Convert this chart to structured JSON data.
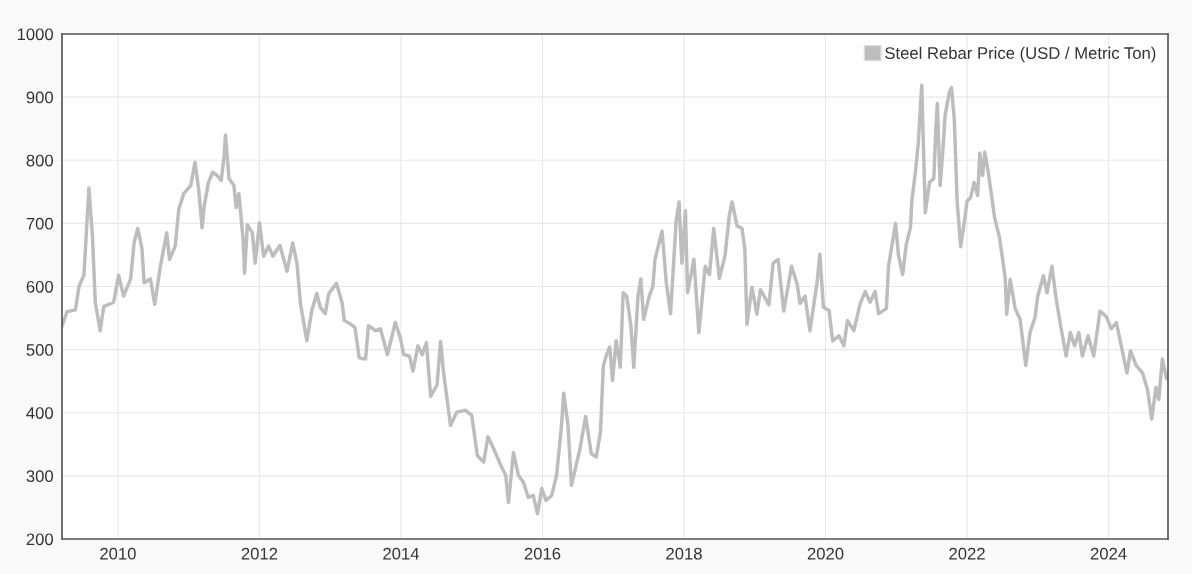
{
  "chart_data": {
    "type": "line",
    "xlim": [
      2009.21,
      2024.84
    ],
    "xticks": [
      2010,
      2012,
      2014,
      2016,
      2018,
      2020,
      2022,
      2024
    ],
    "ylim": [
      200,
      1000
    ],
    "yticks": [
      200,
      300,
      400,
      500,
      600,
      700,
      800,
      900,
      1000
    ],
    "grid": true,
    "legend": "top right",
    "marker": "none",
    "line_style": "solid",
    "series": [
      {
        "name": "Steel Rebar Price (USD / Metric Ton)",
        "color": "#bdbdbd",
        "x": [
          2009.21,
          2009.28,
          2009.4,
          2009.45,
          2009.52,
          2009.59,
          2009.64,
          2009.68,
          2009.75,
          2009.8,
          2009.94,
          2010.01,
          2010.08,
          2010.18,
          2010.23,
          2010.28,
          2010.34,
          2010.37,
          2010.46,
          2010.52,
          2010.6,
          2010.69,
          2010.73,
          2010.81,
          2010.86,
          2010.93,
          2011.03,
          2011.09,
          2011.14,
          2011.19,
          2011.22,
          2011.28,
          2011.34,
          2011.4,
          2011.46,
          2011.5,
          2011.52,
          2011.57,
          2011.64,
          2011.67,
          2011.71,
          2011.77,
          2011.79,
          2011.83,
          2011.9,
          2011.94,
          2012.0,
          2012.06,
          2012.13,
          2012.19,
          2012.29,
          2012.39,
          2012.47,
          2012.53,
          2012.58,
          2012.67,
          2012.74,
          2012.81,
          2012.86,
          2012.93,
          2012.98,
          2013.09,
          2013.17,
          2013.2,
          2013.28,
          2013.35,
          2013.41,
          2013.5,
          2013.54,
          2013.64,
          2013.71,
          2013.81,
          2013.92,
          2013.99,
          2014.04,
          2014.12,
          2014.17,
          2014.24,
          2014.3,
          2014.36,
          2014.42,
          2014.51,
          2014.56,
          2014.6,
          2014.7,
          2014.79,
          2014.91,
          2015.0,
          2015.08,
          2015.17,
          2015.23,
          2015.31,
          2015.41,
          2015.48,
          2015.52,
          2015.59,
          2015.66,
          2015.73,
          2015.8,
          2015.87,
          2015.93,
          2015.99,
          2016.05,
          2016.13,
          2016.2,
          2016.27,
          2016.3,
          2016.36,
          2016.41,
          2016.53,
          2016.61,
          2016.69,
          2016.76,
          2016.82,
          2016.86,
          2016.9,
          2016.95,
          2016.99,
          2017.04,
          2017.1,
          2017.14,
          2017.19,
          2017.25,
          2017.29,
          2017.35,
          2017.39,
          2017.43,
          2017.51,
          2017.56,
          2017.59,
          2017.69,
          2017.75,
          2017.81,
          2017.89,
          2017.93,
          2017.97,
          2018.02,
          2018.05,
          2018.14,
          2018.21,
          2018.3,
          2018.36,
          2018.42,
          2018.5,
          2018.58,
          2018.64,
          2018.68,
          2018.75,
          2018.82,
          2018.86,
          2018.89,
          2018.96,
          2019.03,
          2019.08,
          2019.2,
          2019.26,
          2019.33,
          2019.41,
          2019.52,
          2019.6,
          2019.64,
          2019.71,
          2019.78,
          2019.88,
          2019.92,
          2019.97,
          2020.05,
          2020.1,
          2020.19,
          2020.26,
          2020.31,
          2020.4,
          2020.49,
          2020.56,
          2020.63,
          2020.7,
          2020.75,
          2020.86,
          2020.89,
          2020.94,
          2020.99,
          2021.03,
          2021.09,
          2021.14,
          2021.2,
          2021.22,
          2021.27,
          2021.31,
          2021.36,
          2021.41,
          2021.47,
          2021.53,
          2021.56,
          2021.58,
          2021.62,
          2021.66,
          2021.69,
          2021.75,
          2021.78,
          2021.82,
          2021.86,
          2021.91,
          2021.97,
          2022.0,
          2022.05,
          2022.1,
          2022.15,
          2022.18,
          2022.22,
          2022.25,
          2022.3,
          2022.39,
          2022.46,
          2022.54,
          2022.56,
          2022.61,
          2022.68,
          2022.75,
          2022.83,
          2022.89,
          2022.96,
          2023.0,
          2023.08,
          2023.13,
          2023.2,
          2023.26,
          2023.33,
          2023.4,
          2023.46,
          2023.52,
          2023.58,
          2023.63,
          2023.71,
          2023.79,
          2023.88,
          2023.97,
          2024.04,
          2024.11,
          2024.2,
          2024.26,
          2024.31,
          2024.39,
          2024.48,
          2024.55,
          2024.61,
          2024.67,
          2024.71,
          2024.76,
          2024.82
        ],
        "values": [
          537,
          560,
          563,
          600,
          618,
          756,
          680,
          575,
          530,
          568,
          575,
          618,
          585,
          612,
          670,
          692,
          660,
          606,
          612,
          572,
          632,
          685,
          643,
          664,
          722,
          747,
          760,
          797,
          755,
          693,
          728,
          765,
          781,
          776,
          768,
          805,
          840,
          771,
          760,
          725,
          747,
          674,
          621,
          698,
          685,
          637,
          701,
          648,
          664,
          648,
          665,
          624,
          669,
          637,
          573,
          514,
          562,
          589,
          567,
          557,
          589,
          605,
          573,
          546,
          541,
          535,
          487,
          485,
          538,
          530,
          533,
          492,
          543,
          519,
          492,
          490,
          466,
          506,
          492,
          511,
          426,
          444,
          513,
          466,
          380,
          401,
          404,
          396,
          332,
          322,
          362,
          343,
          317,
          301,
          258,
          337,
          301,
          290,
          266,
          269,
          240,
          280,
          261,
          269,
          301,
          381,
          431,
          381,
          285,
          343,
          394,
          335,
          330,
          370,
          474,
          490,
          504,
          451,
          514,
          472,
          590,
          585,
          538,
          472,
          585,
          612,
          548,
          585,
          600,
          643,
          688,
          606,
          557,
          705,
          734,
          637,
          720,
          590,
          643,
          527,
          632,
          619,
          692,
          613,
          649,
          712,
          734,
          696,
          692,
          659,
          540,
          599,
          556,
          595,
          571,
          637,
          643,
          561,
          632,
          603,
          573,
          585,
          530,
          606,
          651,
          567,
          562,
          514,
          522,
          506,
          546,
          530,
          573,
          592,
          575,
          592,
          557,
          565,
          632,
          666,
          700,
          650,
          619,
          666,
          693,
          735,
          781,
          826,
          919,
          717,
          765,
          771,
          850,
          890,
          760,
          818,
          871,
          908,
          915,
          865,
          735,
          663,
          709,
          735,
          741,
          765,
          744,
          811,
          776,
          813,
          781,
          709,
          677,
          613,
          556,
          611,
          565,
          548,
          475,
          527,
          551,
          585,
          617,
          590,
          632,
          580,
          533,
          490,
          527,
          506,
          527,
          490,
          522,
          490,
          561,
          552,
          533,
          543,
          495,
          463,
          498,
          475,
          463,
          437,
          390,
          440,
          421,
          485,
          454
        ]
      }
    ]
  }
}
